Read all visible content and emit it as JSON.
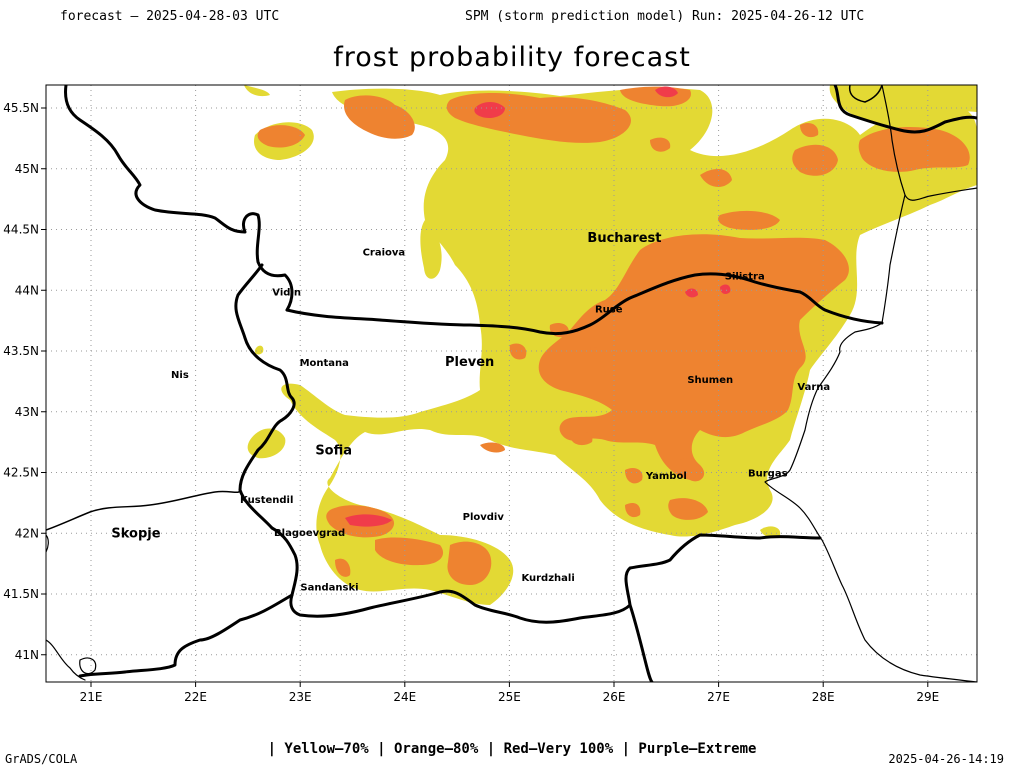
{
  "header": {
    "left": "forecast – 2025-04-28-03 UTC",
    "right": "SPM (storm prediction model) Run: 2025-04-26-12 UTC"
  },
  "title": "frost probability forecast",
  "legend": "| Yellow–70% | Orange–80% | Red–Very 100% | Purple–Extreme",
  "footer": {
    "left": "GrADS/COLA",
    "right": "2025-04-26-14:19"
  },
  "colors": {
    "yellow": "#e3d934",
    "orange": "#ee8330",
    "red": "#f03c4a",
    "border": "#000000",
    "grid": "#9a9a9a"
  },
  "axes": {
    "lon_ticks": [
      "21E",
      "22E",
      "23E",
      "24E",
      "25E",
      "26E",
      "27E",
      "28E",
      "29E"
    ],
    "lat_ticks": [
      "45.5N",
      "45N",
      "44.5N",
      "44N",
      "43.5N",
      "43N",
      "42.5N",
      "42N",
      "41.5N",
      "41N"
    ]
  },
  "cities": [
    {
      "name": "Craiova",
      "lon": 23.8,
      "lat": 44.32
    },
    {
      "name": "Bucharest",
      "lon": 26.1,
      "lat": 44.43
    },
    {
      "name": "Vidin",
      "lon": 22.87,
      "lat": 43.99
    },
    {
      "name": "Silistra",
      "lon": 27.25,
      "lat": 44.12
    },
    {
      "name": "Ruse",
      "lon": 25.95,
      "lat": 43.85
    },
    {
      "name": "Montana",
      "lon": 23.23,
      "lat": 43.41
    },
    {
      "name": "Pleven",
      "lon": 24.62,
      "lat": 43.41
    },
    {
      "name": "Nis",
      "lon": 21.85,
      "lat": 43.31
    },
    {
      "name": "Shumen",
      "lon": 26.92,
      "lat": 43.27
    },
    {
      "name": "Varna",
      "lon": 27.91,
      "lat": 43.21
    },
    {
      "name": "Sofia",
      "lon": 23.32,
      "lat": 42.68
    },
    {
      "name": "Yambol",
      "lon": 26.5,
      "lat": 42.48
    },
    {
      "name": "Burgas",
      "lon": 27.47,
      "lat": 42.5
    },
    {
      "name": "Kustendil",
      "lon": 22.68,
      "lat": 42.28
    },
    {
      "name": "Skopje",
      "lon": 21.43,
      "lat": 42.0
    },
    {
      "name": "Plovdiv",
      "lon": 24.75,
      "lat": 42.14
    },
    {
      "name": "Blagoevgrad",
      "lon": 23.09,
      "lat": 42.01
    },
    {
      "name": "Kurdzhali",
      "lon": 25.37,
      "lat": 41.64
    },
    {
      "name": "Sandanski",
      "lon": 23.28,
      "lat": 41.56
    }
  ]
}
